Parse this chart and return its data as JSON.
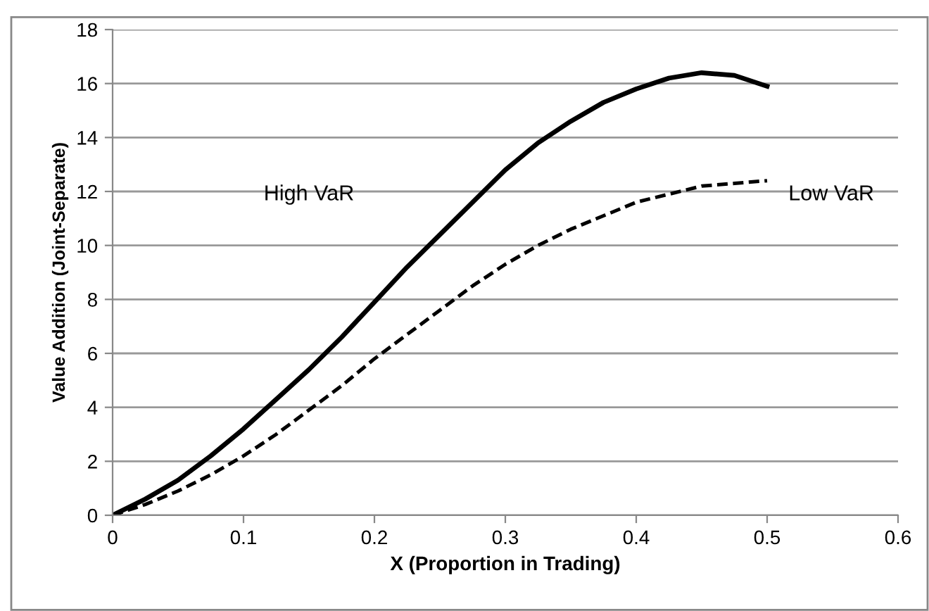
{
  "chart_data": {
    "type": "line",
    "xlabel": "X (Proportion in Trading)",
    "ylabel": "Value Addition (Joint-Separate)",
    "xlim": [
      0,
      0.6
    ],
    "xticks": [
      0,
      0.1,
      0.2,
      0.3,
      0.4,
      0.5,
      0.6
    ],
    "ylim": [
      0,
      18
    ],
    "yticks": [
      0,
      2,
      4,
      6,
      8,
      10,
      12,
      14,
      16,
      18
    ],
    "grid": "y",
    "marker": "none",
    "series": [
      {
        "color": "#000000",
        "line_style": "solid",
        "x": [
          0,
          0.025,
          0.05,
          0.075,
          0.1,
          0.125,
          0.15,
          0.175,
          0.2,
          0.225,
          0.25,
          0.275,
          0.3,
          0.325,
          0.35,
          0.375,
          0.4,
          0.425,
          0.45,
          0.475,
          0.5
        ],
        "values": [
          0,
          0.6,
          1.3,
          2.2,
          3.2,
          4.3,
          5.4,
          6.6,
          7.9,
          9.2,
          10.4,
          11.6,
          12.8,
          13.8,
          14.6,
          15.3,
          15.8,
          16.2,
          16.4,
          16.3,
          15.9
        ]
      },
      {
        "color": "#000000",
        "line_style": "dashed",
        "x": [
          0,
          0.025,
          0.05,
          0.075,
          0.1,
          0.125,
          0.15,
          0.175,
          0.2,
          0.225,
          0.25,
          0.275,
          0.3,
          0.325,
          0.35,
          0.375,
          0.4,
          0.425,
          0.45,
          0.475,
          0.5
        ],
        "values": [
          0,
          0.4,
          0.9,
          1.5,
          2.2,
          3.0,
          3.9,
          4.8,
          5.8,
          6.7,
          7.6,
          8.5,
          9.3,
          10.0,
          10.6,
          11.1,
          11.6,
          11.9,
          12.2,
          12.3,
          12.4
        ]
      }
    ],
    "annotations": [
      "High VaR",
      "Low VaR"
    ]
  }
}
